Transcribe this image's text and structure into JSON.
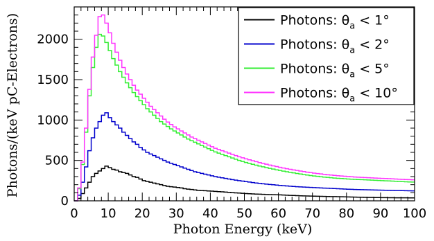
{
  "chart_data": {
    "type": "line",
    "title": "",
    "xlabel": "Photon Energy (keV)",
    "ylabel": "Photons/(keV pC-Electrons)",
    "xlim": [
      0,
      100
    ],
    "ylim": [
      0,
      2400
    ],
    "x_ticks": [
      "0",
      "10",
      "20",
      "30",
      "40",
      "50",
      "60",
      "70",
      "80",
      "90",
      "100"
    ],
    "y_ticks": [
      "0",
      "500",
      "1000",
      "1500",
      "2000"
    ],
    "grid": false,
    "legend_position": "top-right",
    "bin_width": 1,
    "series": [
      {
        "name_prefix": "Photons: θ",
        "name_sub": "a",
        "name_suffix": " < 1°",
        "color": "#000000",
        "values": [
          0,
          30,
          90,
          160,
          230,
          300,
          340,
          370,
          400,
          430,
          410,
          390,
          380,
          360,
          350,
          340,
          320,
          300,
          290,
          270,
          250,
          240,
          230,
          220,
          210,
          200,
          190,
          180,
          175,
          170,
          165,
          160,
          150,
          145,
          140,
          135,
          130,
          128,
          125,
          122,
          120,
          117,
          114,
          111,
          108,
          105,
          102,
          99,
          96,
          93,
          90,
          88,
          86,
          84,
          82,
          80,
          78,
          77,
          76,
          75,
          74,
          72,
          70,
          68,
          66,
          64,
          62,
          61,
          60,
          59,
          58,
          57,
          56,
          55,
          54,
          53,
          52,
          51,
          50,
          49,
          48,
          47,
          46,
          45,
          44,
          43,
          42,
          42,
          41,
          41,
          40,
          40,
          39,
          39,
          38,
          38,
          37,
          37,
          36,
          36
        ]
      },
      {
        "name_prefix": "Photons: θ",
        "name_sub": "a",
        "name_suffix": " < 2°",
        "color": "#0000cc",
        "values": [
          0,
          70,
          230,
          420,
          620,
          780,
          900,
          980,
          1060,
          1090,
          1030,
          980,
          940,
          900,
          850,
          810,
          770,
          730,
          700,
          660,
          630,
          600,
          580,
          560,
          540,
          520,
          500,
          480,
          465,
          450,
          435,
          420,
          405,
          390,
          375,
          360,
          350,
          340,
          330,
          320,
          310,
          300,
          292,
          285,
          278,
          270,
          263,
          256,
          250,
          244,
          238,
          232,
          226,
          221,
          216,
          211,
          207,
          203,
          199,
          195,
          191,
          187,
          184,
          181,
          178,
          175,
          172,
          170,
          168,
          166,
          164,
          162,
          160,
          158,
          156,
          154,
          152,
          150,
          148,
          146,
          144,
          142,
          140,
          139,
          138,
          137,
          136,
          135,
          134,
          133,
          132,
          131,
          130,
          129,
          128,
          127,
          126,
          125,
          124,
          123
        ]
      },
      {
        "name_prefix": "Photons: θ",
        "name_sub": "a",
        "name_suffix": " < 5°",
        "color": "#33ee33",
        "values": [
          0,
          150,
          450,
          850,
          1300,
          1650,
          1900,
          2060,
          2040,
          1960,
          1860,
          1760,
          1680,
          1600,
          1530,
          1460,
          1400,
          1340,
          1290,
          1240,
          1190,
          1140,
          1100,
          1060,
          1020,
          980,
          950,
          920,
          890,
          865,
          840,
          815,
          790,
          765,
          745,
          725,
          705,
          685,
          665,
          645,
          625,
          605,
          590,
          575,
          560,
          545,
          530,
          515,
          500,
          487,
          475,
          463,
          452,
          441,
          431,
          421,
          411,
          402,
          393,
          384,
          376,
          368,
          360,
          353,
          346,
          339,
          332,
          325,
          319,
          313,
          308,
          303,
          298,
          294,
          290,
          286,
          282,
          279,
          276,
          273,
          270,
          268,
          266,
          264,
          262,
          260,
          258,
          256,
          254,
          252,
          250,
          248,
          246,
          244,
          242,
          240,
          238,
          236,
          234,
          232
        ]
      },
      {
        "name_prefix": "Photons: θ",
        "name_sub": "a",
        "name_suffix": " < 10°",
        "color": "#ff33ff",
        "values": [
          0,
          160,
          480,
          900,
          1380,
          1780,
          2050,
          2280,
          2300,
          2200,
          2080,
          1950,
          1840,
          1740,
          1650,
          1570,
          1500,
          1430,
          1370,
          1320,
          1270,
          1220,
          1170,
          1130,
          1090,
          1050,
          1010,
          975,
          945,
          915,
          890,
          865,
          840,
          815,
          790,
          770,
          750,
          730,
          710,
          690,
          670,
          650,
          635,
          620,
          605,
          590,
          575,
          560,
          545,
          532,
          520,
          508,
          496,
          485,
          474,
          463,
          453,
          443,
          433,
          424,
          415,
          406,
          398,
          390,
          383,
          376,
          369,
          362,
          355,
          349,
          343,
          338,
          333,
          328,
          323,
          319,
          315,
          311,
          307,
          304,
          301,
          298,
          295,
          292,
          290,
          288,
          286,
          284,
          282,
          280,
          278,
          276,
          274,
          272,
          270,
          268,
          266,
          264,
          262,
          260
        ]
      }
    ]
  }
}
